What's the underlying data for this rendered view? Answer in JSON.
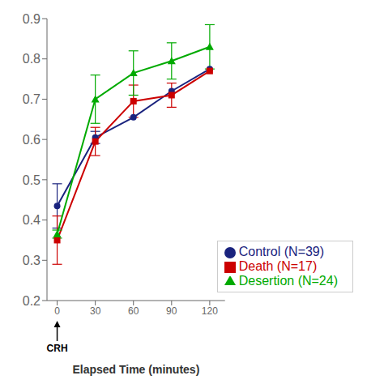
{
  "chart_data": {
    "type": "line",
    "x": [
      0,
      30,
      60,
      90,
      120
    ],
    "series": [
      {
        "name": "Control (N=39)",
        "color": "#1a237e",
        "marker": "circle",
        "values": [
          0.435,
          0.605,
          0.655,
          0.72,
          0.775
        ],
        "errors": [
          0.055,
          0.015,
          0.0,
          0.0,
          0.0
        ]
      },
      {
        "name": "Death (N=17)",
        "color": "#cc0000",
        "marker": "square",
        "values": [
          0.35,
          0.595,
          0.695,
          0.71,
          0.77
        ],
        "errors": [
          0.06,
          0.035,
          0.04,
          0.03,
          0.0
        ]
      },
      {
        "name": "Desertion (N=24)",
        "color": "#00aa00",
        "marker": "triangle",
        "values": [
          0.365,
          0.7,
          0.765,
          0.795,
          0.83
        ],
        "errors": [
          0.01,
          0.06,
          0.055,
          0.045,
          0.055
        ]
      }
    ],
    "xlabel": "Elapsed Time (minutes)",
    "xlim": [
      -8,
      132
    ],
    "xticks": [
      0,
      30,
      60,
      90,
      120
    ],
    "ylim": [
      0.2,
      0.9
    ],
    "yticks": [
      0.2,
      0.3,
      0.4,
      0.5,
      0.6,
      0.7,
      0.8,
      0.9
    ],
    "legend": "lower right",
    "grid": false,
    "annotations": [
      {
        "text": "CRH",
        "x": 0
      }
    ]
  }
}
